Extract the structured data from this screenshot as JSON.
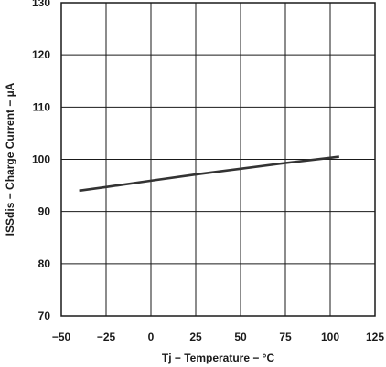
{
  "chart_data": {
    "type": "line",
    "title": "",
    "xlabel": "Tj − Temperature − °C",
    "ylabel": "ISSdis − Charge Current − µA",
    "xlim": [
      -50,
      125
    ],
    "ylim": [
      70,
      130
    ],
    "xticks": [
      -50,
      -25,
      0,
      25,
      50,
      75,
      100,
      125
    ],
    "yticks": [
      70,
      80,
      90,
      100,
      110,
      120,
      130
    ],
    "xtick_labels": [
      "−50",
      "−25",
      "0",
      "25",
      "50",
      "75",
      "100",
      "125"
    ],
    "ytick_labels": [
      "70",
      "80",
      "90",
      "100",
      "110",
      "120",
      "130"
    ],
    "grid": true,
    "legend": "none",
    "line_color": "#333333",
    "series": [
      {
        "x": [
          -40,
          -25,
          0,
          25,
          50,
          75,
          100,
          105
        ],
        "y": [
          94.0,
          94.7,
          95.9,
          97.1,
          98.2,
          99.3,
          100.3,
          100.5
        ]
      }
    ]
  }
}
